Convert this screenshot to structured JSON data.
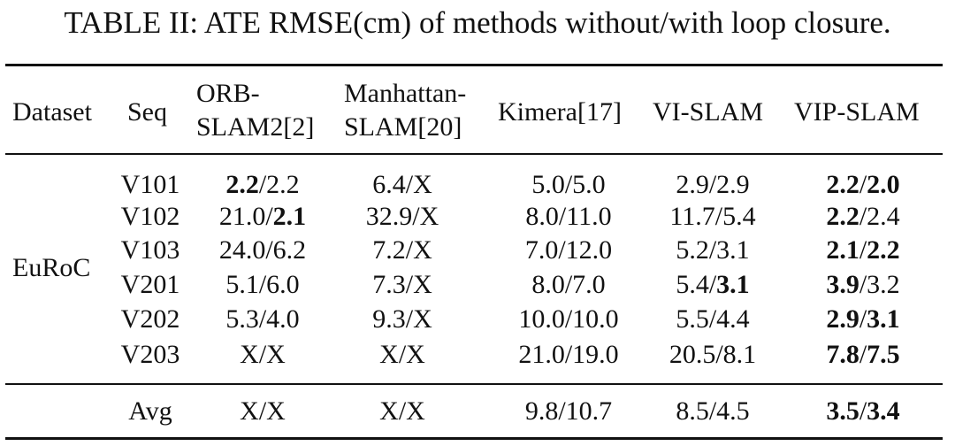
{
  "caption": "TABLE II: ATE RMSE(cm) of methods without/with loop closure.",
  "headers": {
    "dataset": "Dataset",
    "seq": "Seq",
    "orb_l1": "ORB-",
    "orb_l2": "SLAM2[2]",
    "man_l1": "Manhattan-",
    "man_l2": "SLAM[20]",
    "kimera": "Kimera[17]",
    "vislam": "VI-SLAM",
    "vipslam": "VIP-SLAM"
  },
  "dataset_label": "EuRoC",
  "rows": [
    {
      "seq": "V101",
      "cells": [
        {
          "a": "2.2",
          "ab": true,
          "b": "2.2",
          "bb": false
        },
        {
          "a": "6.4",
          "ab": false,
          "b": "X",
          "bb": false
        },
        {
          "a": "5.0",
          "ab": false,
          "b": "5.0",
          "bb": false
        },
        {
          "a": "2.9",
          "ab": false,
          "b": "2.9",
          "bb": false
        },
        {
          "a": "2.2",
          "ab": true,
          "b": "2.0",
          "bb": true
        }
      ]
    },
    {
      "seq": "V102",
      "cells": [
        {
          "a": "21.0",
          "ab": false,
          "b": "2.1",
          "bb": true
        },
        {
          "a": "32.9",
          "ab": false,
          "b": "X",
          "bb": false
        },
        {
          "a": "8.0",
          "ab": false,
          "b": "11.0",
          "bb": false
        },
        {
          "a": "11.7",
          "ab": false,
          "b": "5.4",
          "bb": false
        },
        {
          "a": "2.2",
          "ab": true,
          "b": "2.4",
          "bb": false
        }
      ]
    },
    {
      "seq": "V103",
      "cells": [
        {
          "a": "24.0",
          "ab": false,
          "b": "6.2",
          "bb": false
        },
        {
          "a": "7.2",
          "ab": false,
          "b": "X",
          "bb": false
        },
        {
          "a": "7.0",
          "ab": false,
          "b": "12.0",
          "bb": false
        },
        {
          "a": "5.2",
          "ab": false,
          "b": "3.1",
          "bb": false
        },
        {
          "a": "2.1",
          "ab": true,
          "b": "2.2",
          "bb": true
        }
      ]
    },
    {
      "seq": "V201",
      "cells": [
        {
          "a": "5.1",
          "ab": false,
          "b": "6.0",
          "bb": false
        },
        {
          "a": "7.3",
          "ab": false,
          "b": "X",
          "bb": false
        },
        {
          "a": "8.0",
          "ab": false,
          "b": "7.0",
          "bb": false
        },
        {
          "a": "5.4",
          "ab": false,
          "b": "3.1",
          "bb": true
        },
        {
          "a": "3.9",
          "ab": true,
          "b": "3.2",
          "bb": false
        }
      ]
    },
    {
      "seq": "V202",
      "cells": [
        {
          "a": "5.3",
          "ab": false,
          "b": "4.0",
          "bb": false
        },
        {
          "a": "9.3",
          "ab": false,
          "b": "X",
          "bb": false
        },
        {
          "a": "10.0",
          "ab": false,
          "b": "10.0",
          "bb": false
        },
        {
          "a": "5.5",
          "ab": false,
          "b": "4.4",
          "bb": false
        },
        {
          "a": "2.9",
          "ab": true,
          "b": "3.1",
          "bb": true
        }
      ]
    },
    {
      "seq": "V203",
      "cells": [
        {
          "a": "X",
          "ab": false,
          "b": "X",
          "bb": false
        },
        {
          "a": "X",
          "ab": false,
          "b": "X",
          "bb": false
        },
        {
          "a": "21.0",
          "ab": false,
          "b": "19.0",
          "bb": false
        },
        {
          "a": "20.5",
          "ab": false,
          "b": "8.1",
          "bb": false
        },
        {
          "a": "7.8",
          "ab": true,
          "b": "7.5",
          "bb": true
        }
      ]
    }
  ],
  "avg": {
    "seq": "Avg",
    "cells": [
      {
        "a": "X",
        "ab": false,
        "b": "X",
        "bb": false
      },
      {
        "a": "X",
        "ab": false,
        "b": "X",
        "bb": false
      },
      {
        "a": "9.8",
        "ab": false,
        "b": "10.7",
        "bb": false
      },
      {
        "a": "8.5",
        "ab": false,
        "b": "4.5",
        "bb": false
      },
      {
        "a": "3.5",
        "ab": true,
        "b": "3.4",
        "bb": true
      }
    ]
  }
}
